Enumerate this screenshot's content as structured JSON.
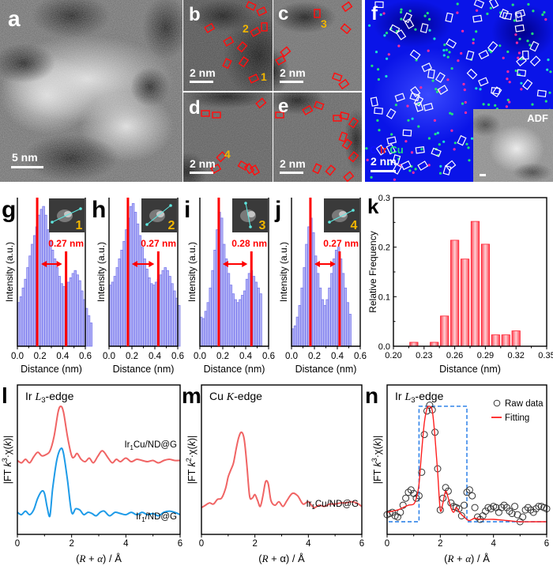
{
  "figure": {
    "panels": {
      "a": {
        "letter": "a",
        "scale": "5 nm"
      },
      "b": {
        "letter": "b",
        "scale": "2 nm",
        "markers": [
          "2",
          "1"
        ]
      },
      "c": {
        "letter": "c",
        "scale": "2 nm",
        "markers": [
          "3"
        ]
      },
      "d": {
        "letter": "d",
        "scale": "2 nm",
        "markers": [
          "4"
        ]
      },
      "e": {
        "letter": "e",
        "scale": "2 nm"
      },
      "f": {
        "letter": "f",
        "scale": "2 nm",
        "legend": {
          "c": "C",
          "ir": "Ir",
          "cu": "Cu"
        },
        "inset_label": "ADF"
      },
      "g": {
        "letter": "g"
      },
      "h": {
        "letter": "h"
      },
      "i": {
        "letter": "i"
      },
      "j": {
        "letter": "j"
      },
      "k": {
        "letter": "k"
      },
      "l": {
        "letter": "l"
      },
      "m": {
        "letter": "m"
      },
      "n": {
        "letter": "n"
      }
    },
    "colors": {
      "ir": "#ff1a1a",
      "cu": "#22e07a",
      "c": "#1010ff",
      "box_red": "#ff1010",
      "marker_yellow": "#f2b600",
      "hist_blue": "#8080f0",
      "red_line": "#ff0000",
      "curve_red": "#f06464",
      "curve_blue": "#1e9be8",
      "dash_blue": "#1e78e6"
    }
  },
  "chart_data": [
    {
      "id": "g",
      "type": "bar",
      "title": "",
      "inset_number": "1",
      "annotation": "0.27 nm",
      "xlabel": "Distance (nm)",
      "ylabel": "Intensity (a.u.)",
      "xlim": [
        0,
        0.6
      ],
      "xticks": [
        "0.0",
        "0.2",
        "0.4",
        "0.6"
      ],
      "x_step": 0.02,
      "values": [
        0.3,
        0.34,
        0.4,
        0.46,
        0.54,
        0.62,
        0.7,
        0.76,
        0.82,
        0.9,
        0.94,
        0.96,
        0.9,
        0.8,
        0.72,
        0.66,
        0.6,
        0.54,
        0.48,
        0.43,
        0.41,
        0.41,
        0.44,
        0.47,
        0.5,
        0.52,
        0.49,
        0.45,
        0.38,
        0.32,
        0.26,
        0.21,
        0.16
      ],
      "ylim": [
        0,
        1
      ],
      "peak_lines": [
        0.175,
        0.43
      ]
    },
    {
      "id": "h",
      "type": "bar",
      "inset_number": "2",
      "annotation": "0.27 nm",
      "xlabel": "Distance (nm)",
      "ylabel": "Intensity (a.u.)",
      "xlim": [
        0,
        0.6
      ],
      "xticks": [
        "0.0",
        "0.2",
        "0.4",
        "0.6"
      ],
      "x_step": 0.02,
      "values": [
        0.42,
        0.44,
        0.48,
        0.54,
        0.6,
        0.66,
        0.72,
        0.8,
        0.88,
        0.96,
        0.98,
        0.92,
        0.84,
        0.76,
        0.68,
        0.6,
        0.53,
        0.47,
        0.43,
        0.42,
        0.44,
        0.46,
        0.49,
        0.52,
        0.54,
        0.52,
        0.48,
        0.43,
        0.38,
        0.33,
        0.28
      ],
      "ylim": [
        0,
        1
      ],
      "peak_lines": [
        0.165,
        0.43
      ]
    },
    {
      "id": "i",
      "type": "bar",
      "inset_number": "3",
      "annotation": "0.28 nm",
      "xlabel": "Distance (nm)",
      "ylabel": "Intensity (a.u.)",
      "xlim": [
        0,
        0.6
      ],
      "xticks": [
        "0.0",
        "0.2",
        "0.4",
        "0.6"
      ],
      "x_step": 0.02,
      "values": [
        0.2,
        0.19,
        0.24,
        0.3,
        0.4,
        0.52,
        0.66,
        0.8,
        0.92,
        0.88,
        0.7,
        0.6,
        0.5,
        0.42,
        0.36,
        0.32,
        0.3,
        0.32,
        0.35,
        0.38,
        0.46,
        0.5,
        0.52,
        0.48,
        0.44,
        0.4,
        0.36
      ],
      "ylim": [
        0,
        1
      ],
      "peak_lines": [
        0.165,
        0.45
      ]
    },
    {
      "id": "j",
      "type": "bar",
      "inset_number": "4",
      "annotation": "0.27 nm",
      "xlabel": "Distance (nm)",
      "ylabel": "Intensity (a.u.)",
      "xlim": [
        0,
        0.6
      ],
      "xticks": [
        "0.0",
        "0.2",
        "0.4",
        "0.6"
      ],
      "x_step": 0.02,
      "values": [
        0.12,
        0.14,
        0.2,
        0.28,
        0.4,
        0.54,
        0.7,
        0.82,
        0.88,
        0.78,
        0.62,
        0.5,
        0.4,
        0.32,
        0.28,
        0.32,
        0.4,
        0.5,
        0.6,
        0.66,
        0.68,
        0.6,
        0.5,
        0.4,
        0.3,
        0.22
      ],
      "ylim": [
        0,
        1
      ],
      "peak_lines": [
        0.165,
        0.42
      ]
    },
    {
      "id": "k",
      "type": "bar",
      "title": "",
      "xlabel": "Distance (nm)",
      "ylabel": "Relative Frequency",
      "xlim": [
        0.2,
        0.35
      ],
      "ylim": [
        0,
        0.3
      ],
      "xticks": [
        "0.20",
        "0.23",
        "0.26",
        "0.29",
        "0.32",
        "0.35"
      ],
      "yticks": [
        "0.0",
        "0.1",
        "0.2",
        "0.3"
      ],
      "categories": [
        0.22,
        0.24,
        0.25,
        0.26,
        0.27,
        0.28,
        0.29,
        0.3,
        0.31,
        0.32
      ],
      "values": [
        0.008,
        0.008,
        0.061,
        0.214,
        0.176,
        0.252,
        0.206,
        0.023,
        0.023,
        0.031
      ]
    },
    {
      "id": "l",
      "type": "line",
      "title": "Ir L3-edge",
      "title_main": "Ir ",
      "title_italic": "L",
      "title_sub": "3",
      "title_rest": "-edge",
      "xlabel": "(R + α) / Å",
      "ylabel": "|FT k3·χ(k)|",
      "xlim": [
        0,
        6
      ],
      "xticks": [
        "0",
        "2",
        "4",
        "6"
      ],
      "series": [
        {
          "name": "Ir1Cu/ND@G",
          "label_main": "Ir",
          "label_sub": "1",
          "label_rest": "Cu/ND@G",
          "x": [
            0,
            0.15,
            0.3,
            0.45,
            0.6,
            0.75,
            0.9,
            1.05,
            1.2,
            1.35,
            1.5,
            1.6,
            1.7,
            1.85,
            2.0,
            2.1,
            2.2,
            2.35,
            2.5,
            2.65,
            2.8,
            2.95,
            3.1,
            3.2,
            3.35,
            3.5,
            3.65,
            3.8,
            4.0,
            4.2,
            4.4,
            4.6,
            4.8,
            5.0,
            5.2,
            5.4,
            5.6,
            5.8,
            6.0
          ],
          "y": [
            0.52,
            0.5,
            0.53,
            0.5,
            0.55,
            0.59,
            0.56,
            0.57,
            0.6,
            0.72,
            0.93,
            0.98,
            0.93,
            0.72,
            0.56,
            0.55,
            0.58,
            0.53,
            0.51,
            0.54,
            0.5,
            0.55,
            0.6,
            0.59,
            0.54,
            0.5,
            0.53,
            0.51,
            0.54,
            0.51,
            0.53,
            0.52,
            0.51,
            0.52,
            0.5,
            0.52,
            0.53,
            0.52,
            0.52
          ]
        },
        {
          "name": "Ir1/ND@G",
          "label_main": "Ir",
          "label_sub": "1",
          "label_rest": "/ND@G",
          "x": [
            0,
            0.15,
            0.3,
            0.45,
            0.6,
            0.75,
            0.9,
            1.0,
            1.1,
            1.2,
            1.3,
            1.45,
            1.6,
            1.7,
            1.85,
            2.0,
            2.15,
            2.3,
            2.45,
            2.6,
            2.75,
            2.9,
            3.05,
            3.2,
            3.4,
            3.6,
            3.8,
            4.0,
            4.2,
            4.4,
            4.6,
            4.8,
            5.0,
            5.2,
            5.4,
            5.6,
            5.8,
            6.0
          ],
          "y": [
            0.08,
            0.06,
            0.09,
            0.06,
            0.1,
            0.2,
            0.26,
            0.24,
            0.12,
            0.05,
            0.28,
            0.52,
            0.62,
            0.58,
            0.35,
            0.08,
            0.11,
            0.1,
            0.06,
            0.08,
            0.07,
            0.05,
            0.08,
            0.09,
            0.05,
            0.08,
            0.07,
            0.06,
            0.08,
            0.06,
            0.08,
            0.06,
            0.07,
            0.05,
            0.08,
            0.09,
            0.08,
            0.06
          ]
        }
      ]
    },
    {
      "id": "m",
      "type": "line",
      "title": "Cu K-edge",
      "title_main": "Cu ",
      "title_italic": "K",
      "title_rest": "-edge",
      "xlabel": "(R + α) / Å",
      "ylabel": "|FT k2·χ(k)|",
      "xlim": [
        0,
        6
      ],
      "xticks": [
        "0",
        "2",
        "4",
        "6"
      ],
      "series": [
        {
          "name": "Ir1Cu/ND@G",
          "label_main": "Ir",
          "label_sub": "1",
          "label_rest": "Cu/ND@G",
          "x": [
            0,
            0.15,
            0.3,
            0.45,
            0.6,
            0.75,
            0.9,
            1.0,
            1.1,
            1.2,
            1.3,
            1.4,
            1.5,
            1.6,
            1.7,
            1.8,
            1.9,
            2.0,
            2.1,
            2.2,
            2.3,
            2.4,
            2.5,
            2.6,
            2.75,
            2.9,
            3.05,
            3.2,
            3.4,
            3.6,
            3.8,
            4.0,
            4.2,
            4.4,
            4.6,
            4.8,
            5.0,
            5.2,
            5.4,
            5.6,
            5.8,
            6.0
          ],
          "y": [
            0.12,
            0.14,
            0.16,
            0.15,
            0.19,
            0.2,
            0.28,
            0.38,
            0.44,
            0.5,
            0.62,
            0.72,
            0.76,
            0.7,
            0.48,
            0.22,
            0.2,
            0.23,
            0.18,
            0.13,
            0.22,
            0.34,
            0.32,
            0.18,
            0.14,
            0.17,
            0.13,
            0.18,
            0.24,
            0.22,
            0.15,
            0.17,
            0.12,
            0.14,
            0.13,
            0.15,
            0.15,
            0.16,
            0.16,
            0.17,
            0.16,
            0.13
          ]
        }
      ]
    },
    {
      "id": "n",
      "type": "line",
      "title": "Ir L3-edge",
      "title_main": "Ir ",
      "title_italic": "L",
      "title_sub": "3",
      "title_rest": "-edge",
      "xlabel": "(R + α) / Å",
      "ylabel": "|FT k3·χ(k)|",
      "xlim": [
        0,
        6
      ],
      "xticks": [
        "0",
        "2",
        "4",
        "6"
      ],
      "legend": [
        "Raw data",
        "Fitting"
      ],
      "legend_position": "top-right",
      "fit_window": [
        1.2,
        3.0
      ],
      "series": [
        {
          "name": "Raw data",
          "style": "circles",
          "x": [
            0,
            0.1,
            0.2,
            0.3,
            0.4,
            0.5,
            0.6,
            0.7,
            0.8,
            0.9,
            1.0,
            1.1,
            1.2,
            1.3,
            1.4,
            1.5,
            1.6,
            1.7,
            1.8,
            1.9,
            2.0,
            2.1,
            2.2,
            2.3,
            2.4,
            2.5,
            2.6,
            2.7,
            2.8,
            2.9,
            3.0,
            3.1,
            3.2,
            3.3,
            3.4,
            3.5,
            3.6,
            3.7,
            3.8,
            3.9,
            4.0,
            4.1,
            4.2,
            4.3,
            4.4,
            4.5,
            4.6,
            4.7,
            4.8,
            4.9,
            5.0,
            5.1,
            5.2,
            5.3,
            5.4,
            5.5,
            5.6,
            5.7,
            5.8,
            5.9,
            6.0
          ],
          "y": [
            0.06,
            0.07,
            0.08,
            0.05,
            0.04,
            0.08,
            0.14,
            0.2,
            0.25,
            0.27,
            0.24,
            0.2,
            0.22,
            0.42,
            0.74,
            0.94,
            0.99,
            0.95,
            0.76,
            0.45,
            0.1,
            0.2,
            0.29,
            0.26,
            0.16,
            0.13,
            0.12,
            0.11,
            0.05,
            0.14,
            0.25,
            0.27,
            0.22,
            0.12,
            0.04,
            0.02,
            0.05,
            0.09,
            0.12,
            0.11,
            0.13,
            0.12,
            0.08,
            0.12,
            0.14,
            0.12,
            0.09,
            0.07,
            0.13,
            0.06,
            0.0,
            0.04,
            0.1,
            0.12,
            0.1,
            0.08,
            0.11,
            0.13,
            0.13,
            0.12,
            0.11
          ]
        },
        {
          "name": "Fitting",
          "style": "line",
          "x": [
            0,
            0.2,
            0.4,
            0.6,
            0.8,
            1.0,
            1.1,
            1.2,
            1.3,
            1.4,
            1.5,
            1.6,
            1.7,
            1.8,
            1.9,
            2.0,
            2.1,
            2.2,
            2.3,
            2.4,
            2.5,
            2.6,
            2.7,
            2.8,
            2.9,
            3.0,
            3.1,
            3.3,
            3.5,
            4.0,
            4.5,
            5.0,
            5.5,
            6.0
          ],
          "y": [
            0.08,
            0.09,
            0.1,
            0.12,
            0.14,
            0.15,
            0.2,
            0.32,
            0.6,
            0.84,
            0.96,
            0.98,
            0.94,
            0.72,
            0.42,
            0.1,
            0.16,
            0.26,
            0.2,
            0.12,
            0.08,
            0.12,
            0.09,
            0.06,
            0.04,
            0.02,
            0.01,
            0.03,
            0.02,
            0.02,
            0.01,
            0.0,
            0.0,
            0.0
          ]
        }
      ]
    }
  ]
}
